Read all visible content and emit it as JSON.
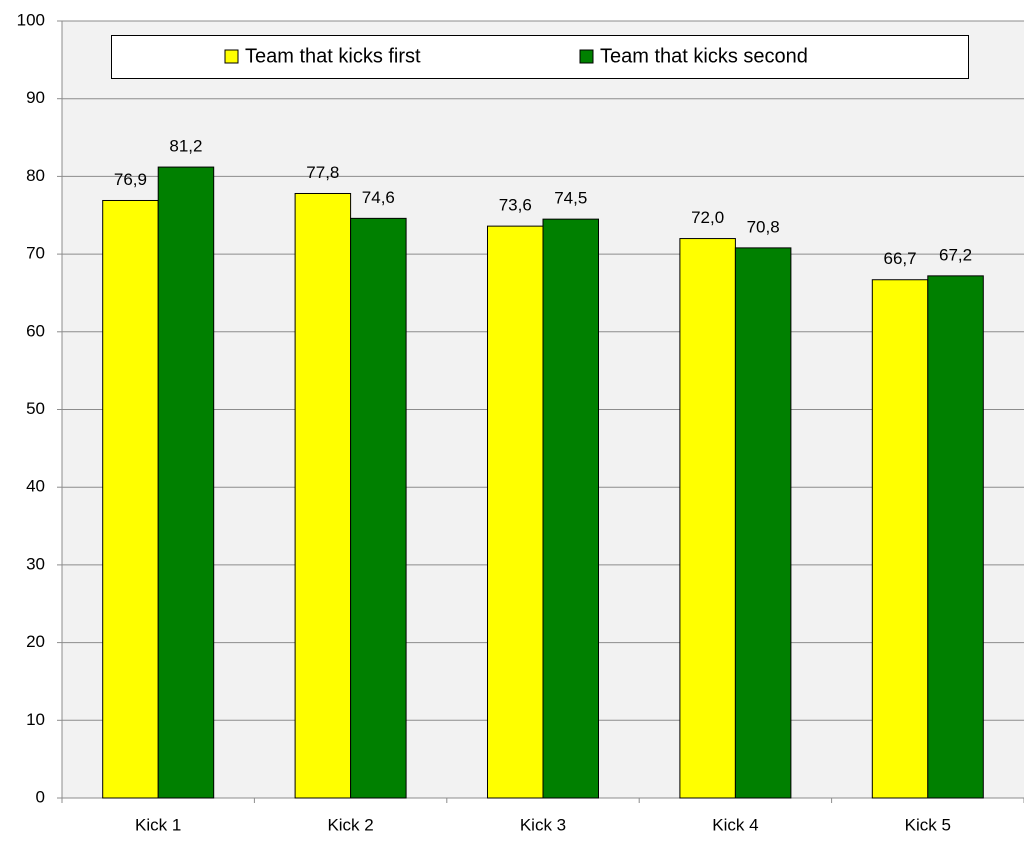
{
  "chart_data": {
    "type": "bar",
    "categories": [
      "Kick 1",
      "Kick 2",
      "Kick 3",
      "Kick 4",
      "Kick 5"
    ],
    "series": [
      {
        "name": "Team that kicks first",
        "color": "#ffff00",
        "values": [
          76.9,
          77.8,
          73.6,
          72.0,
          66.7
        ],
        "value_labels": [
          "76,9",
          "77,8",
          "73,6",
          "72,0",
          "66,7"
        ]
      },
      {
        "name": "Team that kicks second",
        "color": "#008000",
        "values": [
          81.2,
          74.6,
          74.5,
          70.8,
          67.2
        ],
        "value_labels": [
          "81,2",
          "74,6",
          "74,5",
          "70,8",
          "67,2"
        ]
      }
    ],
    "ylim": [
      0,
      100
    ],
    "yticks": [
      0,
      10,
      20,
      30,
      40,
      50,
      60,
      70,
      80,
      90,
      100
    ],
    "grid": true
  }
}
